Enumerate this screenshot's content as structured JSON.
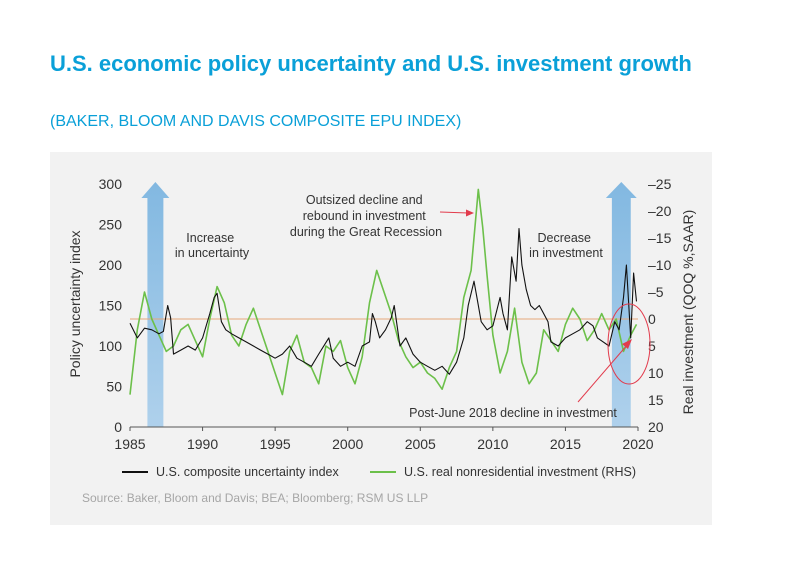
{
  "header": {
    "title": "U.S. economic policy uncertainty and U.S. investment growth",
    "subtitle": "(BAKER, BLOOM AND DAVIS COMPOSITE EPU INDEX)"
  },
  "colors": {
    "title": "#0aa0d8",
    "background_panel": "#f2f2f2",
    "epu_line": "#111111",
    "investment_line": "#6cc04a",
    "shade": "#7cb5e0",
    "reference_line": "#e6a87a",
    "annotation": "#e23b4c"
  },
  "chart_data": {
    "type": "line",
    "x_range": [
      1985,
      2020
    ],
    "x_ticks": [
      "1985",
      "1990",
      "1995",
      "2000",
      "2005",
      "2010",
      "2015",
      "2020"
    ],
    "ylabel": "Policy uncertainty index",
    "ylim": [
      0,
      300
    ],
    "y_ticks": [
      "0",
      "50",
      "100",
      "150",
      "200",
      "250",
      "300"
    ],
    "y2label": "Real investment (QOQ %,SAAR)",
    "y2lim": [
      20,
      -25
    ],
    "y2_ticks": [
      "20",
      "15",
      "10",
      "5",
      "0",
      "-5",
      "-10",
      "-15",
      "-20",
      "-25"
    ],
    "reference_line_y2": 0,
    "shaded_periods": [
      {
        "start": 1986.2,
        "end": 1987.3
      },
      {
        "start": 2018.2,
        "end": 2019.5
      }
    ],
    "series": [
      {
        "name": "U.S. composite uncertainty index",
        "axis": "left",
        "x": [
          1985.0,
          1985.5,
          1986.0,
          1986.5,
          1987.0,
          1987.3,
          1987.6,
          1987.8,
          1988.0,
          1988.5,
          1989.0,
          1989.5,
          1990.0,
          1990.5,
          1990.8,
          1991.0,
          1991.3,
          1991.6,
          1992.0,
          1992.5,
          1993.0,
          1993.5,
          1994.0,
          1994.5,
          1995.0,
          1995.5,
          1996.0,
          1996.5,
          1997.0,
          1997.5,
          1998.0,
          1998.7,
          1999.0,
          1999.5,
          2000.0,
          2000.5,
          2001.0,
          2001.5,
          2001.7,
          2001.9,
          2002.2,
          2002.6,
          2003.0,
          2003.2,
          2003.6,
          2004.0,
          2004.5,
          2005.0,
          2005.5,
          2006.0,
          2006.5,
          2007.0,
          2007.5,
          2008.0,
          2008.3,
          2008.7,
          2008.9,
          2009.2,
          2009.6,
          2010.0,
          2010.5,
          2010.7,
          2011.0,
          2011.3,
          2011.6,
          2011.8,
          2012.0,
          2012.3,
          2012.6,
          2012.9,
          2013.2,
          2013.5,
          2013.8,
          2014.0,
          2014.5,
          2015.0,
          2015.5,
          2016.0,
          2016.5,
          2016.9,
          2017.2,
          2017.6,
          2018.0,
          2018.4,
          2018.7,
          2019.0,
          2019.2,
          2019.5,
          2019.7,
          2019.9
        ],
        "values": [
          128,
          110,
          122,
          120,
          115,
          118,
          150,
          135,
          90,
          95,
          100,
          95,
          110,
          140,
          160,
          165,
          130,
          120,
          115,
          110,
          105,
          100,
          95,
          90,
          85,
          90,
          100,
          85,
          80,
          75,
          90,
          110,
          85,
          75,
          80,
          75,
          100,
          105,
          140,
          130,
          110,
          120,
          135,
          150,
          100,
          110,
          90,
          80,
          75,
          70,
          75,
          65,
          80,
          110,
          150,
          180,
          160,
          130,
          120,
          125,
          160,
          140,
          120,
          210,
          180,
          245,
          200,
          170,
          150,
          145,
          150,
          140,
          130,
          105,
          100,
          110,
          115,
          120,
          130,
          125,
          110,
          105,
          100,
          130,
          120,
          160,
          200,
          110,
          190,
          155
        ]
      },
      {
        "name": "U.S. real nonresidential investment (RHS)",
        "axis": "right",
        "x": [
          1985.0,
          1985.5,
          1986.0,
          1986.5,
          1987.0,
          1987.5,
          1988.0,
          1988.5,
          1989.0,
          1989.5,
          1990.0,
          1990.5,
          1991.0,
          1991.5,
          1992.0,
          1992.5,
          1993.0,
          1993.5,
          1994.0,
          1994.5,
          1995.0,
          1995.5,
          1996.0,
          1996.5,
          1997.0,
          1997.5,
          1998.0,
          1998.5,
          1999.0,
          1999.5,
          2000.0,
          2000.5,
          2001.0,
          2001.5,
          2002.0,
          2002.5,
          2003.0,
          2003.5,
          2004.0,
          2004.5,
          2005.0,
          2005.5,
          2006.0,
          2006.5,
          2007.0,
          2007.5,
          2008.0,
          2008.5,
          2009.0,
          2009.3,
          2009.6,
          2010.0,
          2010.5,
          2011.0,
          2011.5,
          2012.0,
          2012.5,
          2013.0,
          2013.5,
          2014.0,
          2014.5,
          2015.0,
          2015.5,
          2016.0,
          2016.5,
          2017.0,
          2017.5,
          2018.0,
          2018.5,
          2019.0,
          2019.5,
          2019.9
        ],
        "values": [
          14,
          2,
          -5,
          0,
          3,
          6,
          5,
          2,
          1,
          4,
          7,
          0,
          -6,
          -3,
          3,
          5,
          1,
          -2,
          2,
          6,
          10,
          14,
          6,
          3,
          8,
          9,
          12,
          5,
          6,
          4,
          9,
          12,
          7,
          -3,
          -9,
          -5,
          -1,
          4,
          7,
          9,
          8,
          10,
          11,
          13,
          9,
          6,
          -4,
          -9,
          -24,
          -17,
          -8,
          3,
          10,
          6,
          -2,
          8,
          12,
          10,
          2,
          4,
          6,
          1,
          -2,
          0,
          4,
          2,
          -1,
          2,
          0,
          6,
          3,
          1
        ]
      }
    ],
    "annotations": [
      {
        "text": [
          "Increase",
          "in uncertainty"
        ]
      },
      {
        "text": [
          "Outsized decline and",
          "rebound in investment",
          "during the Great Recession"
        ]
      },
      {
        "text": [
          "Decrease",
          "in investment"
        ]
      },
      {
        "text": [
          "Post-June 2018 decline in investment"
        ]
      }
    ]
  },
  "legend": {
    "items": [
      "U.S. composite uncertainty index",
      "U.S. real nonresidential investment (RHS)"
    ]
  },
  "source": "Source: Baker, Bloom and Davis; BEA; Bloomberg; RSM US LLP"
}
